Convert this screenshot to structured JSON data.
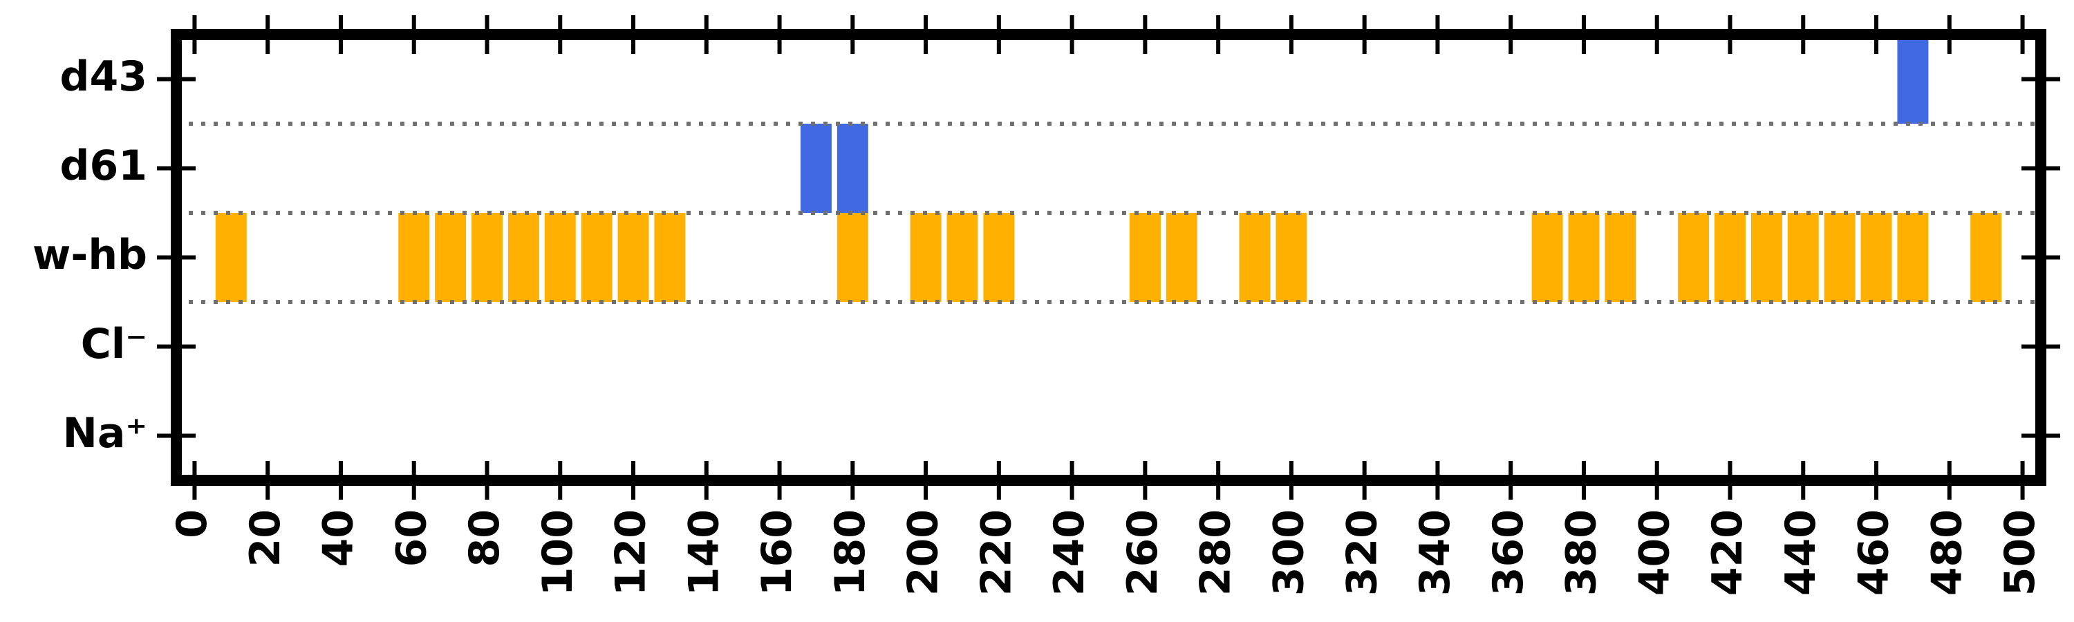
{
  "chart_data": {
    "type": "bar",
    "title": "",
    "xlabel": "",
    "ylabel": "",
    "xlim": [
      -5,
      505
    ],
    "ylim": [
      -0.5,
      4.5
    ],
    "xticks": [
      0,
      20,
      40,
      60,
      80,
      100,
      120,
      140,
      160,
      180,
      200,
      220,
      240,
      260,
      280,
      300,
      320,
      340,
      360,
      380,
      400,
      420,
      440,
      460,
      480,
      500
    ],
    "xtick_labels": [
      "0",
      "20",
      "40",
      "60",
      "80",
      "100",
      "120",
      "140",
      "160",
      "180",
      "200",
      "220",
      "240",
      "260",
      "280",
      "300",
      "320",
      "340",
      "360",
      "380",
      "400",
      "420",
      "440",
      "460",
      "480",
      "500"
    ],
    "categories": [
      "Na⁺",
      "Cl⁻",
      "w-hb",
      "d61",
      "d43"
    ],
    "separators": [
      1.5,
      2.5,
      3.5
    ],
    "grid": false,
    "bar_width": 8.5,
    "series": [
      {
        "color": "#FFB000",
        "points": [
          {
            "x": 10,
            "y": 2
          },
          {
            "x": 60,
            "y": 2
          },
          {
            "x": 70,
            "y": 2
          },
          {
            "x": 80,
            "y": 2
          },
          {
            "x": 90,
            "y": 2
          },
          {
            "x": 100,
            "y": 2
          },
          {
            "x": 110,
            "y": 2
          },
          {
            "x": 120,
            "y": 2
          },
          {
            "x": 130,
            "y": 2
          },
          {
            "x": 180,
            "y": 2
          },
          {
            "x": 200,
            "y": 2
          },
          {
            "x": 210,
            "y": 2
          },
          {
            "x": 220,
            "y": 2
          },
          {
            "x": 260,
            "y": 2
          },
          {
            "x": 270,
            "y": 2
          },
          {
            "x": 290,
            "y": 2
          },
          {
            "x": 300,
            "y": 2
          },
          {
            "x": 370,
            "y": 2
          },
          {
            "x": 380,
            "y": 2
          },
          {
            "x": 390,
            "y": 2
          },
          {
            "x": 410,
            "y": 2
          },
          {
            "x": 420,
            "y": 2
          },
          {
            "x": 430,
            "y": 2
          },
          {
            "x": 440,
            "y": 2
          },
          {
            "x": 450,
            "y": 2
          },
          {
            "x": 460,
            "y": 2
          },
          {
            "x": 470,
            "y": 2
          },
          {
            "x": 490,
            "y": 2
          }
        ]
      },
      {
        "color": "#4169E1",
        "points": [
          {
            "x": 170,
            "y": 3
          },
          {
            "x": 180,
            "y": 3
          },
          {
            "x": 470,
            "y": 4
          }
        ]
      }
    ]
  }
}
